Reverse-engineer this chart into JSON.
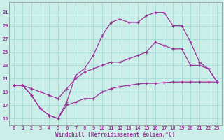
{
  "bg_color": "#cceee8",
  "line_color": "#993399",
  "grid_color": "#aadddd",
  "xlabel": "Windchill (Refroidissement éolien,°C)",
  "ylim": [
    14.0,
    32.5
  ],
  "xlim": [
    -0.5,
    23.5
  ],
  "yticks": [
    15,
    17,
    19,
    21,
    23,
    25,
    27,
    29,
    31
  ],
  "xticks": [
    0,
    1,
    2,
    3,
    4,
    5,
    6,
    7,
    8,
    9,
    10,
    11,
    12,
    13,
    14,
    15,
    16,
    17,
    18,
    19,
    20,
    21,
    22,
    23
  ],
  "line1_x": [
    0,
    1,
    2,
    3,
    4,
    5,
    6,
    7,
    8,
    9,
    10,
    11,
    12,
    13,
    14,
    15,
    16,
    17,
    18,
    19,
    20,
    21,
    22,
    23
  ],
  "line1_y": [
    20.0,
    20.0,
    18.5,
    16.5,
    15.5,
    15.0,
    17.0,
    17.5,
    18.0,
    18.0,
    19.0,
    19.5,
    19.8,
    20.0,
    20.2,
    20.3,
    20.3,
    20.4,
    20.5,
    20.5,
    20.5,
    20.5,
    20.5,
    20.5
  ],
  "line2_x": [
    0,
    1,
    2,
    3,
    4,
    5,
    6,
    7,
    8,
    9,
    10,
    11,
    12,
    13,
    14,
    15,
    16,
    17,
    18,
    19,
    20,
    21,
    22,
    23
  ],
  "line2_y": [
    20.0,
    20.0,
    19.5,
    19.0,
    18.5,
    18.0,
    19.5,
    21.0,
    22.0,
    22.5,
    23.0,
    23.5,
    23.5,
    24.0,
    24.5,
    25.0,
    26.5,
    26.0,
    25.5,
    25.5,
    23.0,
    23.0,
    22.5,
    20.5
  ],
  "line3_x": [
    0,
    1,
    2,
    3,
    4,
    5,
    6,
    7,
    8,
    9,
    10,
    11,
    12,
    13,
    14,
    15,
    16,
    17,
    18,
    19,
    20,
    21,
    22,
    23
  ],
  "line3_y": [
    20.0,
    20.0,
    18.5,
    16.5,
    15.5,
    15.0,
    17.5,
    21.5,
    22.5,
    24.5,
    27.5,
    29.5,
    30.0,
    29.5,
    29.5,
    30.5,
    31.0,
    31.0,
    29.0,
    29.0,
    26.5,
    23.5,
    22.5,
    20.5
  ]
}
